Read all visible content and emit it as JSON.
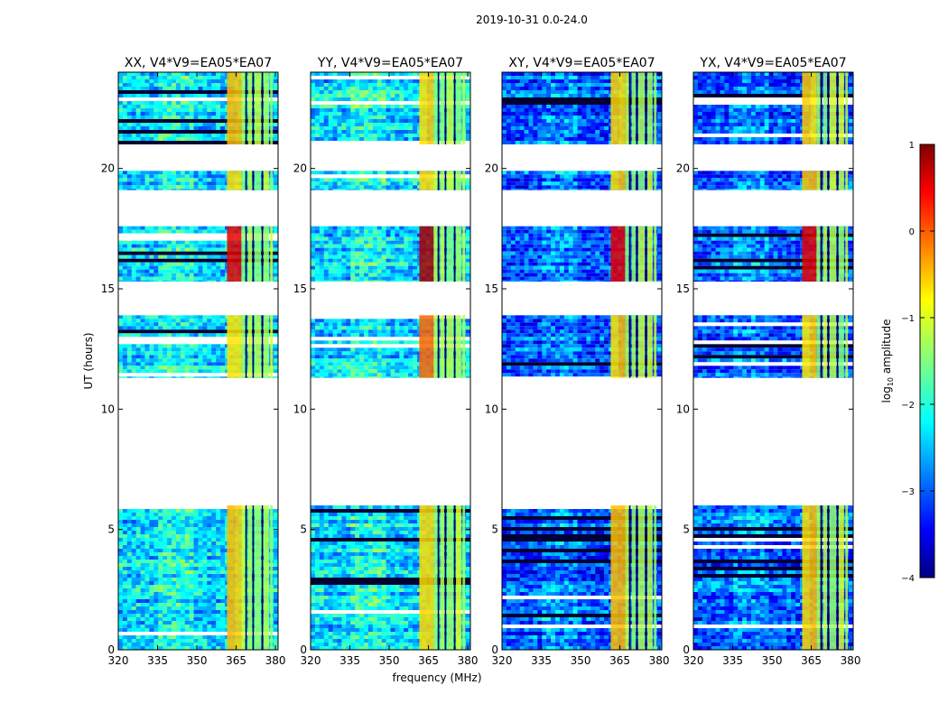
{
  "figure": {
    "suptitle": "2019-10-31 0.0-24.0"
  },
  "chart_data": [
    {
      "type": "heatmap",
      "title": "XX, V4*V9=EA05*EA07",
      "polarization": "XX"
    },
    {
      "type": "heatmap",
      "title": "YY, V4*V9=EA05*EA07",
      "polarization": "YY"
    },
    {
      "type": "heatmap",
      "title": "XY, V4*V9=EA05*EA07",
      "polarization": "XY"
    },
    {
      "type": "heatmap",
      "title": "YX, V4*V9=EA05*EA07",
      "polarization": "YX"
    }
  ],
  "axes": {
    "xlabel": "frequency (MHz)",
    "ylabel": "UT (hours)",
    "xlim": [
      320,
      381
    ],
    "ylim": [
      0,
      24
    ],
    "xticks": [
      320,
      335,
      350,
      365,
      380
    ],
    "xtick_labels": [
      "320",
      "335",
      "350",
      "365",
      "380"
    ],
    "yticks": [
      0,
      5,
      10,
      15,
      20
    ],
    "ytick_labels": [
      "0",
      "5",
      "10",
      "15",
      "20"
    ]
  },
  "data_blocks_hours": [
    [
      0.0,
      6.0
    ],
    [
      11.3,
      13.9
    ],
    [
      15.3,
      17.6
    ],
    [
      19.1,
      19.9
    ],
    [
      21.0,
      24.0
    ]
  ],
  "colorbar": {
    "label_prefix": "log",
    "label_sub": "10",
    "label_suffix": " amplitude",
    "range": [
      -4,
      1
    ],
    "ticks": [
      1,
      0,
      -1,
      -2,
      -3,
      -4
    ],
    "tick_labels": [
      "1",
      "0",
      "−1",
      "−2",
      "−3",
      "−4"
    ],
    "colormap": "jet"
  }
}
